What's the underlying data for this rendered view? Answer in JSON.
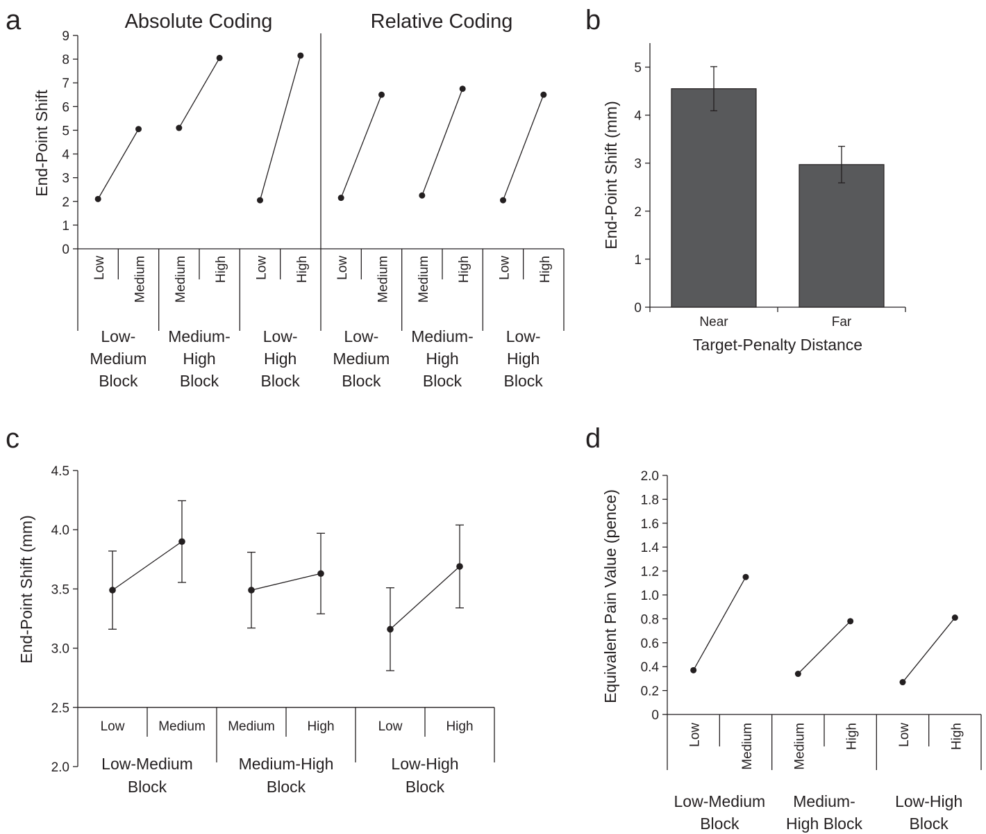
{
  "panel_a": {
    "letter": "a",
    "titles": [
      "Absolute Coding",
      "Relative Coding"
    ],
    "ylabel": "End-Point Shift",
    "yticks": [
      "0",
      "1",
      "2",
      "3",
      "4",
      "5",
      "6",
      "7",
      "8",
      "9"
    ]
  },
  "panel_b": {
    "letter": "b",
    "ylabel": "End-Point Shift (mm)",
    "xlabel": "Target-Penalty Distance",
    "yticks": [
      "0",
      "1",
      "2",
      "3",
      "4",
      "5"
    ]
  },
  "panel_c": {
    "letter": "c",
    "ylabel": "End-Point Shift (mm)",
    "yticks": [
      "2.0",
      "2.5",
      "3.0",
      "3.5",
      "4.0",
      "4.5"
    ]
  },
  "panel_d": {
    "letter": "d",
    "ylabel": "Equivalent Pain Value (pence)",
    "yticks": [
      "0",
      "0.2",
      "0.4",
      "0.6",
      "0.8",
      "1.0",
      "1.2",
      "1.4",
      "1.6",
      "1.8",
      "2.0"
    ]
  },
  "chart_data": [
    {
      "panel": "a",
      "type": "line",
      "ylim": [
        0,
        9
      ],
      "ylabel": "End-Point Shift",
      "categories": [
        "Low",
        "Medium",
        "Medium",
        "High",
        "Low",
        "High",
        "Low",
        "Medium",
        "Medium",
        "High",
        "Low",
        "High"
      ],
      "groups": [
        {
          "name": "Low-Medium Block",
          "lines": [
            "Low-",
            "Medium",
            "Block"
          ],
          "values": [
            2.1,
            5.05
          ]
        },
        {
          "name": "Medium-High Block",
          "lines": [
            "Medium-",
            "High",
            "Block"
          ],
          "values": [
            5.1,
            8.05
          ]
        },
        {
          "name": "Low-High Block",
          "lines": [
            "Low-",
            "High",
            "Block"
          ],
          "values": [
            2.05,
            8.15
          ]
        },
        {
          "name": "Low-Medium Block",
          "lines": [
            "Low-",
            "Medium",
            "Block"
          ],
          "values": [
            2.15,
            6.5
          ]
        },
        {
          "name": "Medium-High Block",
          "lines": [
            "Medium-",
            "High",
            "Block"
          ],
          "values": [
            2.25,
            6.75
          ]
        },
        {
          "name": "Low-High Block",
          "lines": [
            "Low-",
            "High",
            "Block"
          ],
          "values": [
            2.05,
            6.5
          ]
        }
      ],
      "sections": [
        "Absolute Coding",
        "Relative Coding"
      ],
      "grid": false
    },
    {
      "panel": "b",
      "type": "bar",
      "categories": [
        "Near",
        "Far"
      ],
      "values": [
        4.55,
        2.97
      ],
      "error": [
        0.46,
        0.38
      ],
      "xlabel": "Target-Penalty Distance",
      "ylabel": "End-Point Shift (mm)",
      "ylim": [
        0,
        5.5
      ],
      "bar_color": "#58595b",
      "grid": false
    },
    {
      "panel": "c",
      "type": "line",
      "ylim": [
        2.0,
        4.5
      ],
      "ylabel": "End-Point Shift (mm)",
      "categories": [
        "Low",
        "Medium",
        "Medium",
        "High",
        "Low",
        "High"
      ],
      "groups": [
        {
          "name": "Low-Medium Block",
          "lines": [
            "Low-Medium",
            "Block"
          ],
          "values": [
            3.49,
            3.9
          ],
          "error": [
            0.33,
            0.345
          ]
        },
        {
          "name": "Medium-High Block",
          "lines": [
            "Medium-High",
            "Block"
          ],
          "values": [
            3.49,
            3.63
          ],
          "error": [
            0.32,
            0.34
          ]
        },
        {
          "name": "Low-High Block",
          "lines": [
            "Low-High",
            "Block"
          ],
          "values": [
            3.16,
            3.69
          ],
          "error": [
            0.35,
            0.35
          ]
        }
      ],
      "grid": false
    },
    {
      "panel": "d",
      "type": "line",
      "ylim": [
        0,
        2.0
      ],
      "ylabel": "Equivalent Pain Value (pence)",
      "categories": [
        "Low",
        "Medium",
        "Medium",
        "High",
        "Low",
        "High"
      ],
      "groups": [
        {
          "name": "Low-Medium Block",
          "lines": [
            "Low-Medium",
            "Block"
          ],
          "values": [
            0.37,
            1.15
          ]
        },
        {
          "name": "Medium-High Block",
          "lines": [
            "Medium-",
            "High Block"
          ],
          "values": [
            0.34,
            0.78
          ]
        },
        {
          "name": "Low-High Block",
          "lines": [
            "Low-High",
            "Block"
          ],
          "values": [
            0.27,
            0.81
          ]
        }
      ],
      "grid": false
    }
  ]
}
